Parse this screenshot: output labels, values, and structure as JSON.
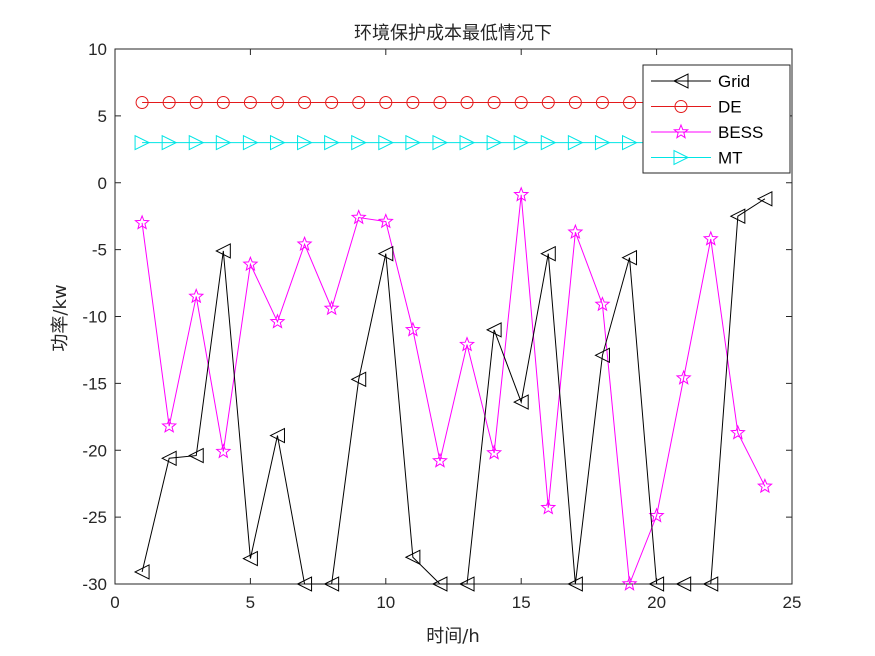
{
  "chart_data": {
    "type": "line",
    "title": "环境保护成本最低情况下",
    "xlabel": "时间/h",
    "ylabel": "功率/kw",
    "xlim": [
      0,
      25
    ],
    "ylim": [
      -30,
      10
    ],
    "xticks": [
      0,
      5,
      10,
      15,
      20,
      25
    ],
    "yticks": [
      10,
      5,
      0,
      -5,
      -10,
      -15,
      -20,
      -25,
      -30
    ],
    "grid": false,
    "legend_position": "upper right",
    "x": [
      1,
      2,
      3,
      4,
      5,
      6,
      7,
      8,
      9,
      10,
      11,
      12,
      13,
      14,
      15,
      16,
      17,
      18,
      19,
      20,
      21,
      22,
      23,
      24
    ],
    "series": [
      {
        "name": "Grid",
        "color": "#000000",
        "marker": "triangle-left",
        "values": [
          -29.1,
          -20.6,
          -20.4,
          -5.1,
          -28.1,
          -18.9,
          -30,
          -30,
          -14.7,
          -5.3,
          -28.0,
          -30,
          -30,
          -11.0,
          -16.4,
          -5.3,
          -30,
          -12.9,
          -5.6,
          -30,
          -30,
          -30,
          -2.5,
          -1.2
        ]
      },
      {
        "name": "DE",
        "color": "#e31a1c",
        "marker": "circle",
        "values": [
          6,
          6,
          6,
          6,
          6,
          6,
          6,
          6,
          6,
          6,
          6,
          6,
          6,
          6,
          6,
          6,
          6,
          6,
          6,
          6,
          6,
          6,
          6,
          6
        ]
      },
      {
        "name": "BESS",
        "color": "#ff00ff",
        "marker": "star",
        "values": [
          -3.0,
          -18.2,
          -8.5,
          -20.1,
          -6.1,
          -10.4,
          -4.6,
          -9.4,
          -2.6,
          -2.9,
          -11.0,
          -20.8,
          -12.1,
          -20.2,
          -0.9,
          -24.3,
          -3.7,
          -9.1,
          -30,
          -24.9,
          -14.6,
          -4.2,
          -18.7,
          -22.7
        ]
      },
      {
        "name": "MT",
        "color": "#00e5e5",
        "marker": "triangle-right",
        "values": [
          3,
          3,
          3,
          3,
          3,
          3,
          3,
          3,
          3,
          3,
          3,
          3,
          3,
          3,
          3,
          3,
          3,
          3,
          3,
          3,
          3,
          3,
          3,
          3
        ]
      }
    ]
  }
}
